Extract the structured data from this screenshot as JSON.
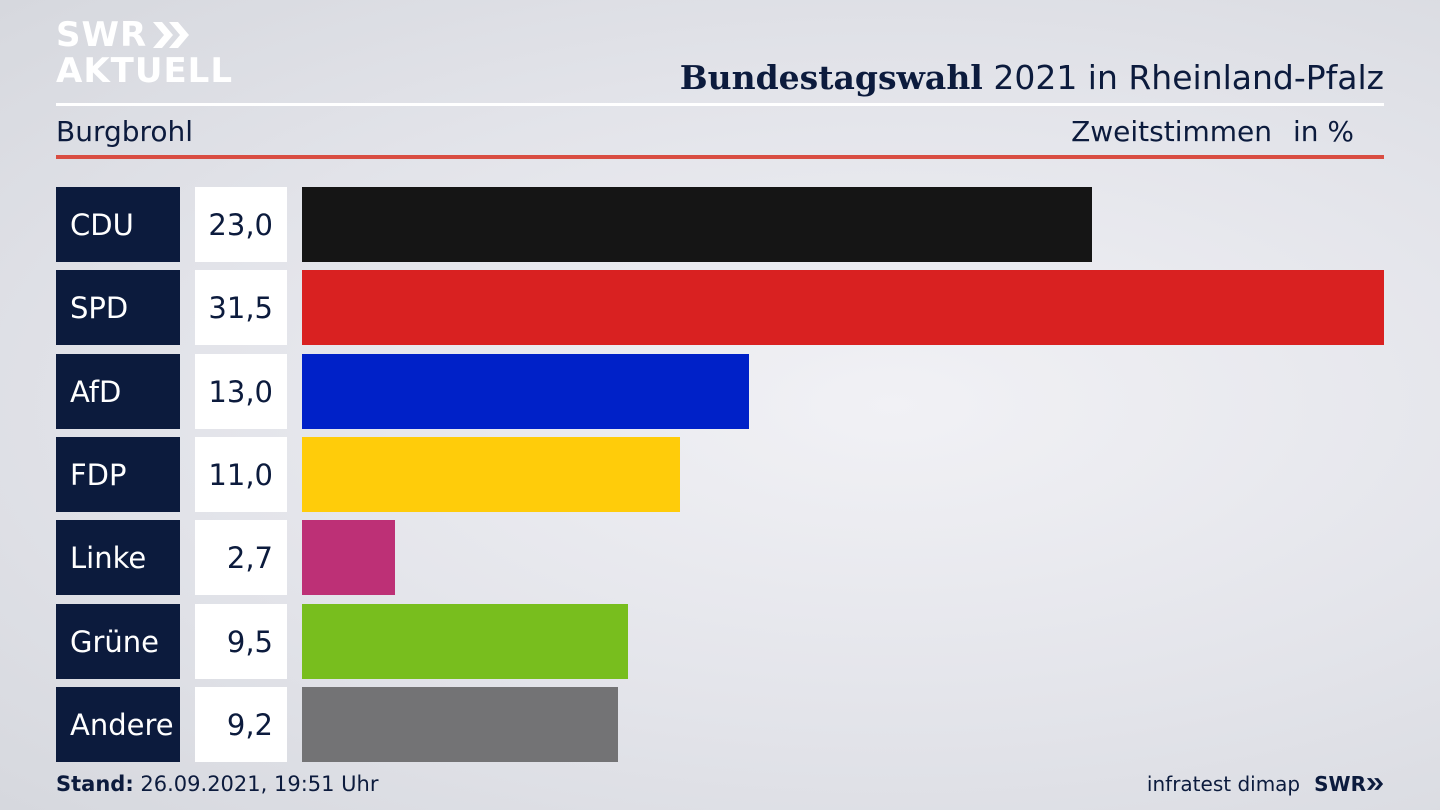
{
  "header": {
    "logo_line1": "SWR",
    "logo_line2": "AKTUELL",
    "title_bold": "Bundestagswahl",
    "title_rest": " 2021 in Rheinland-Pfalz",
    "subtitle": "Burgbrohl",
    "metric": "Zweitstimmen",
    "unit": "in %"
  },
  "footer": {
    "stand_label": "Stand:",
    "stand_value": " 26.09.2021, 19:51 Uhr",
    "source": "infratest dimap",
    "brand": "SWR"
  },
  "chart_data": {
    "type": "bar",
    "orientation": "horizontal",
    "title": "Bundestagswahl 2021 in Rheinland-Pfalz",
    "subtitle": "Burgbrohl",
    "categories": [
      "CDU",
      "SPD",
      "AfD",
      "FDP",
      "Linke",
      "Grüne",
      "Andere"
    ],
    "values": [
      23.0,
      31.5,
      13.0,
      11.0,
      2.7,
      9.5,
      9.2
    ],
    "value_labels": [
      "23,0",
      "31,5",
      "13,0",
      "11,0",
      "2,7",
      "9,5",
      "9,2"
    ],
    "colors": [
      "#151515",
      "#d92121",
      "#0021c8",
      "#ffcc0a",
      "#bd3076",
      "#78be1e",
      "#737375"
    ],
    "xlim": [
      0,
      31.5
    ],
    "grid": false,
    "legend": "none"
  }
}
